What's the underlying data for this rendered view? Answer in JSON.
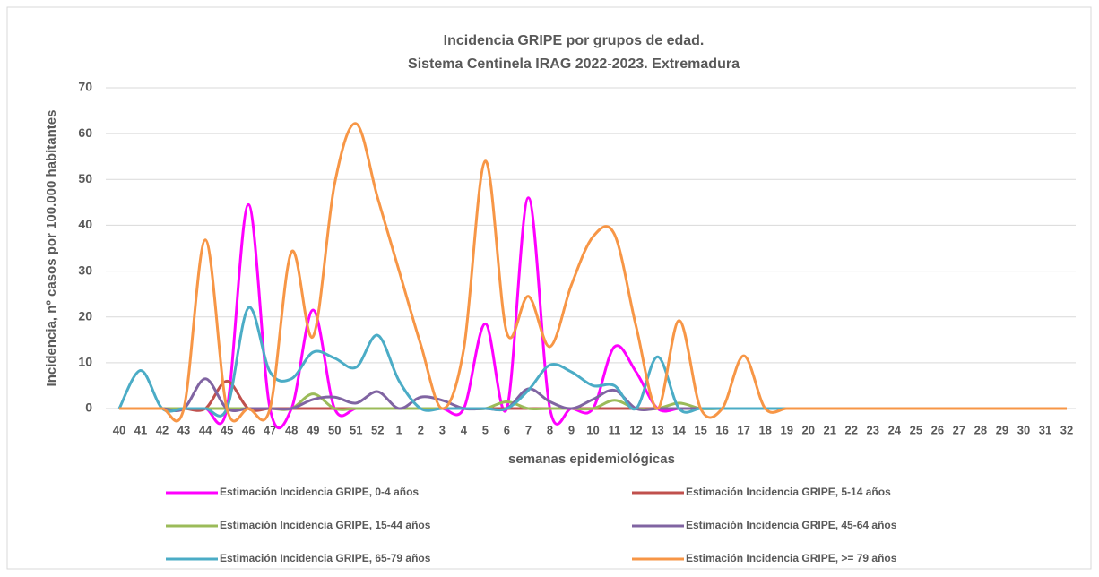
{
  "chart_data": {
    "type": "line",
    "title": "Incidencia GRIPE por grupos de edad.",
    "subtitle": "Sistema Centinela IRAG 2022-2023. Extremadura",
    "x_label": "semanas epidemiológicas",
    "y_label": "Incidencia, nº casos por 100.000 habitantes",
    "categories": [
      "40",
      "41",
      "42",
      "43",
      "44",
      "45",
      "46",
      "47",
      "48",
      "49",
      "50",
      "51",
      "52",
      "1",
      "2",
      "3",
      "4",
      "5",
      "6",
      "7",
      "8",
      "9",
      "10",
      "11",
      "12",
      "13",
      "14",
      "15",
      "16",
      "17",
      "18",
      "19",
      "20",
      "21",
      "22",
      "23",
      "24",
      "25",
      "26",
      "27",
      "28",
      "29",
      "30",
      "31",
      "32"
    ],
    "ylim": [
      0,
      70
    ],
    "yticks": [
      0,
      10,
      20,
      30,
      40,
      50,
      60,
      70
    ],
    "grid": true,
    "smooth": true,
    "legend": "bottom",
    "series": [
      {
        "name": "Estimación Incidencia GRIPE, 0-4 años",
        "color": "#ff00ff",
        "values": [
          0,
          0,
          0,
          0,
          0,
          0,
          44.5,
          0,
          0,
          21.5,
          0,
          0,
          0,
          0,
          0,
          0,
          0,
          18.5,
          0,
          46,
          0,
          0,
          0,
          13.5,
          8,
          0,
          0,
          0,
          0,
          0,
          0,
          0,
          0,
          0,
          0,
          0,
          0,
          0,
          0,
          0,
          0,
          0,
          0,
          0,
          0
        ]
      },
      {
        "name": "Estimación Incidencia GRIPE, 5-14 años",
        "color": "#c0504d",
        "values": [
          0,
          0,
          0,
          0,
          0,
          6,
          0,
          0,
          0,
          0,
          0,
          0,
          0,
          0,
          0,
          0,
          0,
          0,
          0,
          0,
          0,
          0,
          0,
          0,
          0,
          0,
          0,
          0,
          0,
          0,
          0,
          0,
          0,
          0,
          0,
          0,
          0,
          0,
          0,
          0,
          0,
          0,
          0,
          0,
          0
        ]
      },
      {
        "name": "Estimación Incidencia GRIPE, 15-44 años",
        "color": "#9bbb59",
        "values": [
          0,
          0,
          0,
          0,
          0,
          0,
          0,
          0,
          0,
          3.2,
          0,
          0,
          0,
          0,
          0,
          0,
          0,
          0,
          1.5,
          0,
          0,
          0,
          0,
          1.8,
          0,
          0,
          1.2,
          0,
          0,
          0,
          0,
          0,
          0,
          0,
          0,
          0,
          0,
          0,
          0,
          0,
          0,
          0,
          0,
          0,
          0
        ]
      },
      {
        "name": "Estimación Incidencia GRIPE, 45-64 años",
        "color": "#8064a2",
        "values": [
          0,
          0,
          0,
          0,
          6.5,
          0,
          0,
          0,
          0,
          2,
          2.5,
          1.2,
          3.7,
          0,
          2.5,
          1.8,
          0,
          0,
          0,
          4.3,
          1.5,
          0,
          2,
          4,
          0,
          0,
          0,
          0,
          0,
          0,
          0,
          0,
          0,
          0,
          0,
          0,
          0,
          0,
          0,
          0,
          0,
          0,
          0,
          0,
          0
        ]
      },
      {
        "name": "Estimación Incidencia GRIPE, 65-79 años",
        "color": "#4bacc6",
        "values": [
          0,
          8.3,
          0,
          0,
          0,
          0,
          22,
          8,
          6.5,
          12.3,
          11,
          9,
          16,
          6,
          0,
          0,
          0,
          0,
          0,
          4,
          9.5,
          8,
          5,
          5,
          0,
          11.3,
          0,
          0,
          0,
          0,
          0,
          0,
          0,
          0,
          0,
          0,
          0,
          0,
          0,
          0,
          0,
          0,
          0,
          0,
          0
        ]
      },
      {
        "name": "Estimación Incidencia GRIPE, >= 79 años",
        "color": "#f79646",
        "values": [
          0,
          0,
          0,
          0,
          36.8,
          0,
          0,
          0,
          34.2,
          15.7,
          49,
          62.2,
          46,
          30,
          14,
          0,
          13,
          54,
          16.5,
          24.5,
          13.5,
          27,
          37.5,
          38,
          18,
          0,
          19.2,
          0,
          0,
          11.5,
          0,
          0,
          0,
          0,
          0,
          0,
          0,
          0,
          0,
          0,
          0,
          0,
          0,
          0,
          0
        ]
      }
    ]
  }
}
